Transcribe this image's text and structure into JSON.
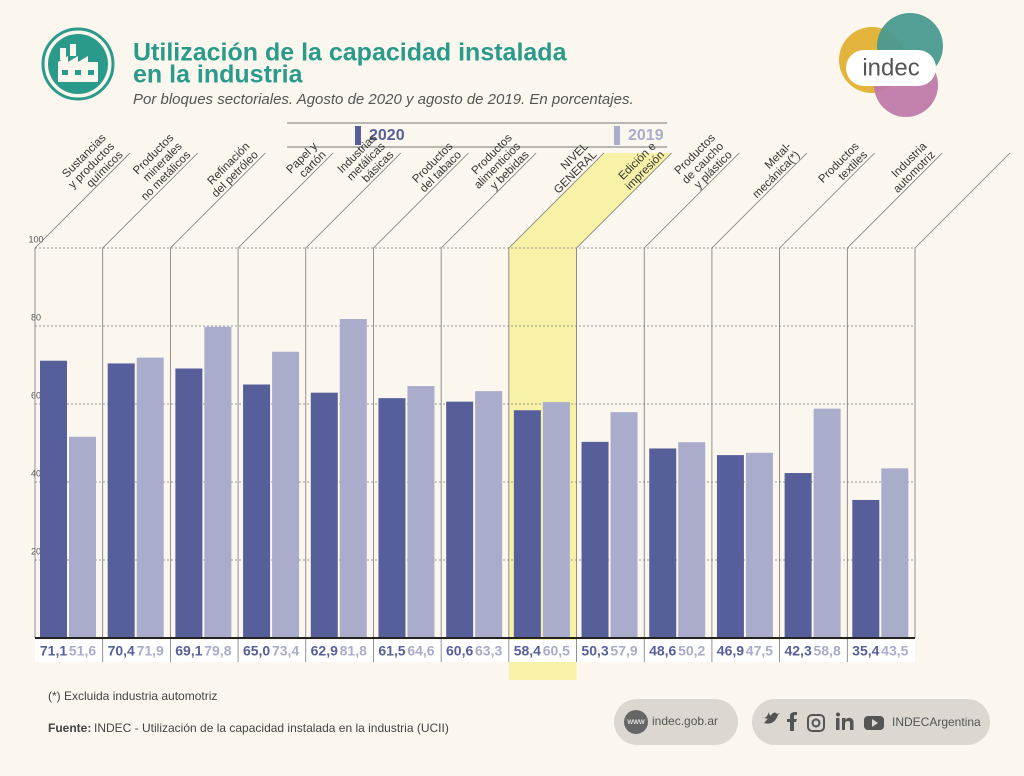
{
  "header": {
    "title": [
      "Utilización de la capacidad instalada",
      "en la industria"
    ],
    "subtitle": "Por bloques sectoriales. Agosto de 2020 y agosto de 2019. En porcentajes.",
    "logo": "indec"
  },
  "chart_data": {
    "type": "bar",
    "categories": [
      [
        "Sustancias",
        "y productos",
        "químicos"
      ],
      [
        "Productos",
        "minerales",
        "no metálicos"
      ],
      [
        "Refinación",
        "del petróleo"
      ],
      [
        "Papel y",
        "cartón"
      ],
      [
        "Industrias",
        "metálicas",
        "básicas"
      ],
      [
        "Productos",
        "del tabaco"
      ],
      [
        "Productos",
        "alimenticios",
        "y bebidas"
      ],
      [
        "NIVEL",
        "GENERAL"
      ],
      [
        "Edición e",
        "impresión"
      ],
      [
        "Productos",
        "de caucho",
        "y plástico"
      ],
      [
        "Metal-",
        "mecánica(*)"
      ],
      [
        "Productos",
        "textiles"
      ],
      [
        "Industria",
        "automotriz"
      ]
    ],
    "series": [
      {
        "name": "2020",
        "color": "#565f99",
        "values": [
          71.1,
          70.4,
          69.1,
          65.0,
          62.9,
          61.5,
          60.6,
          58.4,
          50.3,
          48.6,
          46.9,
          42.3,
          35.4
        ],
        "value_labels": [
          "71,1",
          "70,4",
          "69,1",
          "65,0",
          "62,9",
          "61,5",
          "60,6",
          "58,4",
          "50,3",
          "48,6",
          "46,9",
          "42,3",
          "35,4"
        ]
      },
      {
        "name": "2019",
        "color": "#a9acca",
        "values": [
          51.6,
          71.9,
          79.8,
          73.4,
          81.8,
          64.6,
          63.3,
          60.5,
          57.9,
          50.2,
          47.5,
          58.8,
          43.5
        ],
        "value_labels": [
          "51,6",
          "71,9",
          "79,8",
          "73,4",
          "81,8",
          "64,6",
          "63,3",
          "60,5",
          "57,9",
          "50,2",
          "47,5",
          "58,8",
          "43,5"
        ]
      }
    ],
    "ylim": [
      0,
      100
    ],
    "yticks": [
      20,
      40,
      60,
      80,
      100
    ],
    "grid": true,
    "highlight": {
      "index": 7,
      "color": "#f8f2a8"
    }
  },
  "footer": {
    "note": "(*) Excluida industria automotriz",
    "source_label": "Fuente:",
    "source": "INDEC - Utilización de la capacidad instalada en la industria (UCII)",
    "web_icon": "www",
    "website": "indec.gob.ar",
    "social": "INDECArgentina"
  }
}
